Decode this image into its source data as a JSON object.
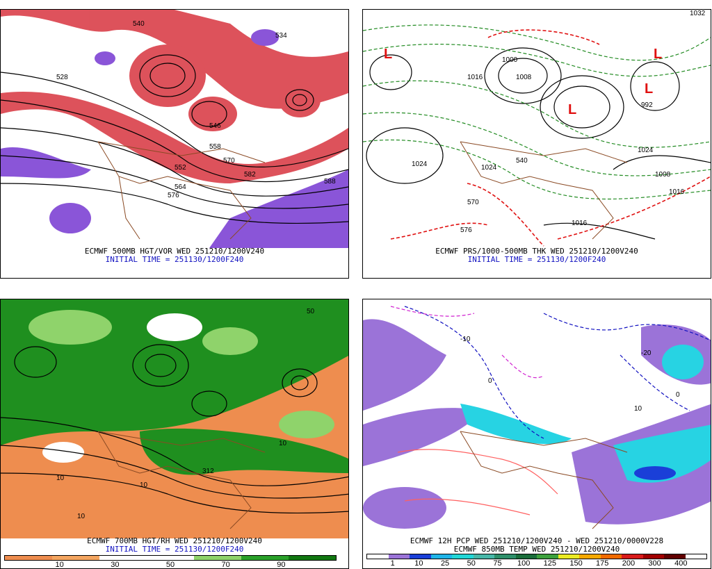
{
  "panels": [
    {
      "id": "p500",
      "caption_line1": "ECMWF 500MB HGT/VOR WED 251210/1200V240",
      "caption_line2": "INITIAL TIME = 251130/1200F240",
      "labels": [
        "540",
        "552",
        "564",
        "576",
        "588",
        "546",
        "534",
        "528",
        "558",
        "570",
        "582"
      ]
    },
    {
      "id": "pthk",
      "caption_line1": "ECMWF PRS/1000-500MB THK WED 251210/1200V240",
      "caption_line2": "INITIAL TIME = 251130/1200F240",
      "labels": [
        "1032",
        "992",
        "1024",
        "1016",
        "1008",
        "1000",
        "1024",
        "1008",
        "1016",
        "1016",
        "570",
        "576",
        "540",
        "1024"
      ]
    },
    {
      "id": "p700",
      "caption_line1": "ECMWF 700MB HGT/RH WED 251210/1200V240",
      "caption_line2": "INITIAL TIME = 251130/1200F240",
      "labels": [
        "10",
        "10",
        "10",
        "312",
        "10",
        "50"
      ]
    },
    {
      "id": "ppcp",
      "caption_line1": "ECMWF 12H PCP WED 251210/1200V240 - WED 251210/0000V228",
      "caption_line2": "ECMWF 850MB TEMP WED 251210/1200V240",
      "labels": [
        "-10",
        "0",
        "10",
        "-20",
        "0"
      ]
    }
  ],
  "legend_rh": {
    "colors": [
      "#ee8d4f",
      "#f4a560",
      "#ffffff",
      "#ffffff",
      "#8fd36b",
      "#2aa02a",
      "#117711"
    ],
    "ticks": [
      "10",
      "30",
      "50",
      "70",
      "90"
    ]
  },
  "legend_pcp": {
    "colors": [
      "#ffffff",
      "#9b73d8",
      "#1a3fd8",
      "#1fb4e8",
      "#21d6d6",
      "#48b7a8",
      "#2e8f6a",
      "#1a6d3a",
      "#3ca03c",
      "#eaea22",
      "#f6a800",
      "#f06a00",
      "#d81b1b",
      "#a00000",
      "#600000",
      "#ffffff"
    ],
    "ticks": [
      "1",
      "10",
      "25",
      "50",
      "75",
      "100",
      "125",
      "150",
      "175",
      "200",
      "300",
      "400"
    ]
  },
  "colors": {
    "height_contour": "#000000",
    "border": "#8a4a24",
    "vorticity": "#d81b2a",
    "negative_vorticity": "#8a55d8",
    "thickness_cold": "#228b22",
    "thickness_warm": "#e01010",
    "low_marker": "#e01010",
    "rh_dry": "#ee8d4f",
    "rh_moist": "#1f8f1f",
    "pcp_light": "#9b73d8",
    "pcp_cyan": "#27d3e3",
    "temp_contour": "#1010c0"
  }
}
